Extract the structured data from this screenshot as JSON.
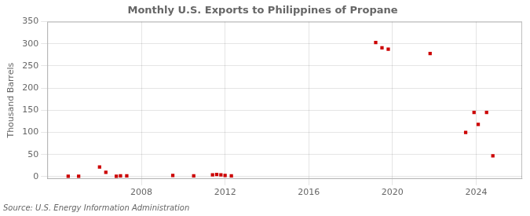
{
  "chart_data": {
    "type": "scatter",
    "title": "Monthly U.S. Exports to Philippines of Propane",
    "ylabel": "Thousand Barrels",
    "source": "Source: U.S. Energy Information Administration",
    "x": [
      2004.5,
      2005.0,
      2006.0,
      2006.3,
      2006.8,
      2007.0,
      2007.3,
      2009.5,
      2010.5,
      2011.4,
      2011.6,
      2011.8,
      2012.0,
      2012.3,
      2019.2,
      2019.5,
      2019.8,
      2021.8,
      2023.5,
      2023.9,
      2024.1,
      2024.5,
      2024.8
    ],
    "values": [
      1,
      1,
      22,
      10,
      1,
      2,
      2,
      3,
      2,
      4,
      5,
      4,
      3,
      2,
      303,
      291,
      288,
      278,
      100,
      145,
      118,
      145,
      47
    ],
    "color": "#cc0000",
    "marker": "square",
    "xlim": [
      2003.5,
      2026.2
    ],
    "xticks": [
      2008,
      2012,
      2016,
      2020,
      2024
    ],
    "ylim": [
      -5,
      350
    ],
    "yticks": [
      0,
      50,
      100,
      150,
      200,
      250,
      300,
      350
    ],
    "grid": true
  }
}
